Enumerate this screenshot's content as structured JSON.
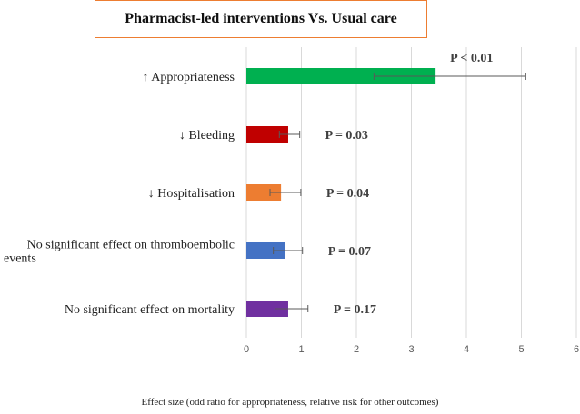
{
  "chart_data": {
    "type": "bar",
    "orientation": "horizontal",
    "title": "Pharmacist-led interventions Vs. Usual care",
    "xlabel": "Effect size (odd ratio for appropriateness, relative risk for other outcomes)",
    "xlim": [
      0,
      6
    ],
    "xticks": [
      0,
      1,
      2,
      3,
      4,
      5,
      6
    ],
    "grid": "vertical major",
    "categories": [
      [
        "↑ Appropriateness"
      ],
      [
        "↓ Bleeding"
      ],
      [
        "↓ Hospitalisation"
      ],
      [
        "No significant effect on thromboembolic",
        "events"
      ],
      [
        "No significant effect on mortality"
      ]
    ],
    "values": [
      3.44,
      0.76,
      0.63,
      0.7,
      0.76
    ],
    "error_low": [
      2.32,
      0.6,
      0.43,
      0.49,
      0.52
    ],
    "error_high": [
      5.08,
      0.97,
      0.99,
      1.02,
      1.12
    ],
    "p_labels": [
      "P < 0.01",
      "P = 0.03",
      "P = 0.04",
      "P = 0.07",
      "P = 0.17"
    ],
    "colors": [
      "#00B050",
      "#C00000",
      "#ED7D31",
      "#4472C4",
      "#7030A0"
    ]
  }
}
